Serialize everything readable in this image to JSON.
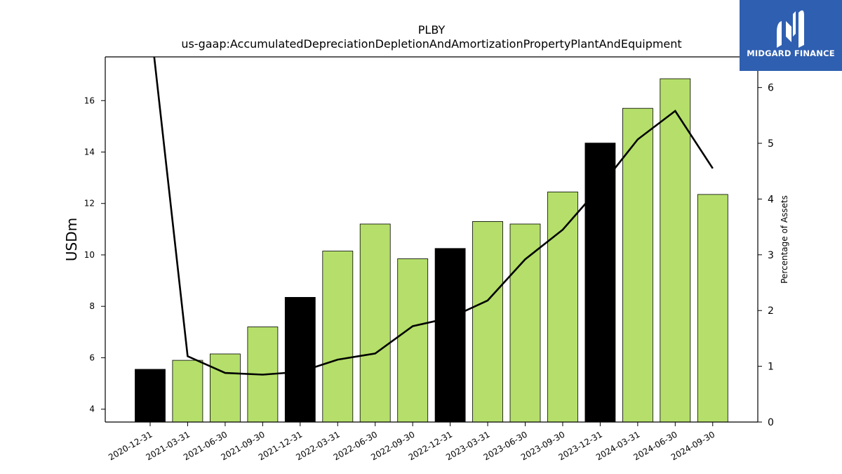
{
  "chart_data": {
    "type": "bar",
    "title": "PLBY",
    "subtitle": "us-gaap:AccumulatedDepreciationDepletionAndAmortizationPropertyPlantAndEquipment",
    "ylabel": "USDm",
    "y2label": "Percentage of Assets",
    "ylim": [
      3.5,
      17.7
    ],
    "y2lim": [
      0,
      6.55
    ],
    "yticks": [
      4,
      6,
      8,
      10,
      12,
      14,
      16
    ],
    "y2ticks": [
      0,
      1,
      2,
      3,
      4,
      5,
      6
    ],
    "categories": [
      "2020-12-31",
      "2021-03-31",
      "2021-06-30",
      "2021-09-30",
      "2021-12-31",
      "2022-03-31",
      "2022-06-30",
      "2022-09-30",
      "2022-12-31",
      "2023-03-31",
      "2023-06-30",
      "2023-09-30",
      "2023-12-31",
      "2024-03-31",
      "2024-06-30",
      "2024-09-30"
    ],
    "series": [
      {
        "kind": "bar",
        "values": [
          5.55,
          5.9,
          6.15,
          7.2,
          8.35,
          10.15,
          11.2,
          9.85,
          10.25,
          11.3,
          11.2,
          12.45,
          14.35,
          15.7,
          16.85,
          12.35
        ],
        "colors": [
          "#000000",
          "#b5df6a",
          "#b5df6a",
          "#b5df6a",
          "#000000",
          "#b5df6a",
          "#b5df6a",
          "#b5df6a",
          "#000000",
          "#b5df6a",
          "#b5df6a",
          "#b5df6a",
          "#000000",
          "#b5df6a",
          "#b5df6a",
          "#b5df6a"
        ]
      },
      {
        "kind": "line",
        "axis": "right",
        "color": "#000000",
        "values": [
          7.2,
          1.18,
          0.88,
          0.85,
          0.9,
          1.12,
          1.23,
          1.72,
          1.87,
          2.18,
          2.92,
          3.45,
          4.22,
          5.07,
          5.58,
          4.55
        ]
      }
    ],
    "grid": false,
    "legend": "none"
  },
  "logo": {
    "text": "MIDGARD FINANCE"
  }
}
